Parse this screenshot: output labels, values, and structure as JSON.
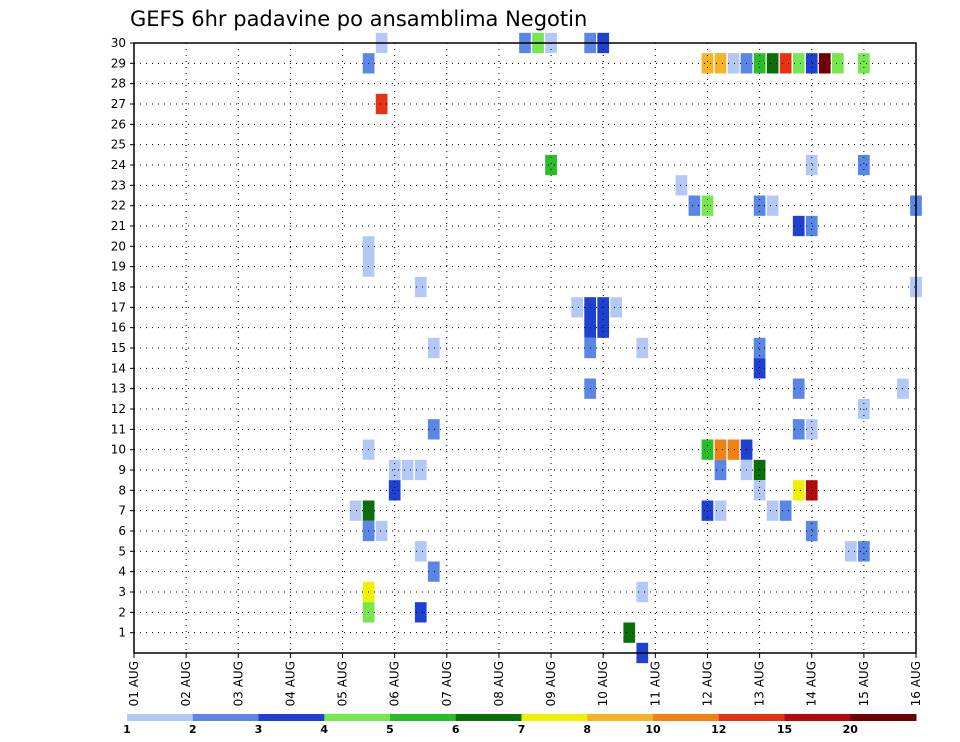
{
  "chart_data": {
    "type": "heatmap",
    "title": "GEFS 6hr padavine po ansamblima Negotin",
    "xlabel": "",
    "ylabel": "",
    "x_tick_labels": [
      "01 AUG",
      "02 AUG",
      "03 AUG",
      "04 AUG",
      "05 AUG",
      "06 AUG",
      "07 AUG",
      "08 AUG",
      "09 AUG",
      "10 AUG",
      "11 AUG",
      "12 AUG",
      "13 AUG",
      "14 AUG",
      "15 AUG",
      "16 AUG"
    ],
    "x_range_steps": [
      0,
      60
    ],
    "x_step_unit": "6 hours (4 steps per day, step 0 = 01 AUG 00Z)",
    "y_tick_labels": [
      "1",
      "2",
      "3",
      "4",
      "5",
      "6",
      "7",
      "8",
      "9",
      "10",
      "11",
      "12",
      "13",
      "14",
      "15",
      "16",
      "17",
      "18",
      "19",
      "20",
      "21",
      "22",
      "23",
      "24",
      "25",
      "26",
      "27",
      "28",
      "29",
      "30"
    ],
    "y_range": [
      0,
      30
    ],
    "y_meaning": "ensemble member",
    "grid": "dotted",
    "colorbar": {
      "labels": [
        "1",
        "2",
        "3",
        "4",
        "5",
        "6",
        "7",
        "8",
        "10",
        "12",
        "15",
        "20"
      ],
      "colors": [
        "#b4c8f5",
        "#5a87e6",
        "#1e41d2",
        "#78e650",
        "#28be28",
        "#0a6e0a",
        "#f0f000",
        "#f5b428",
        "#f08214",
        "#e63214",
        "#b40a0a",
        "#6e0000"
      ]
    },
    "cell_value_note": "each cell: member, forecast step (6h), precipitation class index into colorbar.colors",
    "cells": [
      [
        30,
        19,
        0
      ],
      [
        30,
        30,
        1
      ],
      [
        30,
        31,
        3
      ],
      [
        30,
        32,
        0
      ],
      [
        30,
        35,
        1
      ],
      [
        30,
        36,
        2
      ],
      [
        29,
        18,
        1
      ],
      [
        29,
        44,
        7
      ],
      [
        29,
        45,
        7
      ],
      [
        29,
        46,
        0
      ],
      [
        29,
        47,
        1
      ],
      [
        29,
        48,
        4
      ],
      [
        29,
        49,
        5
      ],
      [
        29,
        50,
        9
      ],
      [
        29,
        51,
        3
      ],
      [
        29,
        52,
        2
      ],
      [
        29,
        53,
        11
      ],
      [
        29,
        54,
        3
      ],
      [
        29,
        56,
        3
      ],
      [
        27,
        19,
        9
      ],
      [
        24,
        32,
        4
      ],
      [
        24,
        52,
        0
      ],
      [
        24,
        56,
        1
      ],
      [
        23,
        42,
        0
      ],
      [
        22,
        43,
        1
      ],
      [
        22,
        44,
        3
      ],
      [
        22,
        48,
        1
      ],
      [
        22,
        49,
        0
      ],
      [
        22,
        60,
        1
      ],
      [
        21,
        51,
        2
      ],
      [
        21,
        52,
        1
      ],
      [
        20,
        18,
        0
      ],
      [
        19,
        18,
        0
      ],
      [
        18,
        22,
        0
      ],
      [
        18,
        60,
        0
      ],
      [
        17,
        34,
        0
      ],
      [
        17,
        35,
        2
      ],
      [
        17,
        36,
        2
      ],
      [
        17,
        37,
        0
      ],
      [
        16,
        35,
        2
      ],
      [
        16,
        36,
        2
      ],
      [
        15,
        23,
        0
      ],
      [
        15,
        35,
        1
      ],
      [
        15,
        39,
        0
      ],
      [
        15,
        48,
        1
      ],
      [
        14,
        48,
        2
      ],
      [
        13,
        35,
        1
      ],
      [
        13,
        51,
        1
      ],
      [
        13,
        59,
        0
      ],
      [
        12,
        56,
        0
      ],
      [
        11,
        23,
        1
      ],
      [
        11,
        51,
        1
      ],
      [
        11,
        52,
        0
      ],
      [
        10,
        18,
        0
      ],
      [
        10,
        44,
        4
      ],
      [
        10,
        45,
        8
      ],
      [
        10,
        46,
        8
      ],
      [
        10,
        47,
        2
      ],
      [
        9,
        20,
        0
      ],
      [
        9,
        21,
        0
      ],
      [
        9,
        22,
        0
      ],
      [
        9,
        45,
        1
      ],
      [
        9,
        47,
        0
      ],
      [
        9,
        48,
        5
      ],
      [
        8,
        20,
        2
      ],
      [
        8,
        48,
        0
      ],
      [
        8,
        51,
        6
      ],
      [
        8,
        52,
        10
      ],
      [
        7,
        17,
        0
      ],
      [
        7,
        18,
        5
      ],
      [
        7,
        44,
        2
      ],
      [
        7,
        45,
        0
      ],
      [
        7,
        49,
        0
      ],
      [
        7,
        50,
        1
      ],
      [
        6,
        18,
        1
      ],
      [
        6,
        19,
        0
      ],
      [
        6,
        52,
        1
      ],
      [
        5,
        22,
        0
      ],
      [
        5,
        55,
        0
      ],
      [
        5,
        56,
        1
      ],
      [
        4,
        23,
        1
      ],
      [
        3,
        18,
        6
      ],
      [
        3,
        39,
        0
      ],
      [
        2,
        18,
        3
      ],
      [
        2,
        22,
        2
      ],
      [
        1,
        38,
        5
      ],
      [
        0,
        39,
        2
      ]
    ]
  }
}
